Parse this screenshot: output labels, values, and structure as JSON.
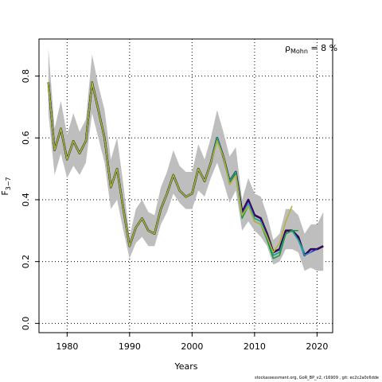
{
  "chart_data": {
    "type": "line",
    "title": "",
    "xlabel": "Years",
    "ylabel": "F",
    "ylabel_sub": "3−7",
    "annotation": {
      "rho": "ρ",
      "sub": "Mohn",
      "text": " = 8 %"
    },
    "xlim": [
      1975.5,
      2022.5
    ],
    "ylim": [
      -0.03,
      0.92
    ],
    "x_ticks": [
      1980,
      1990,
      2000,
      2010,
      2020
    ],
    "x_tick_labels": [
      "1980",
      "1990",
      "2000",
      "2010",
      "2020"
    ],
    "y_ticks": [
      0.0,
      0.2,
      0.4,
      0.6,
      0.8
    ],
    "y_tick_labels": [
      "0.0",
      "0.2",
      "0.4",
      "0.6",
      "0.8"
    ],
    "grid": "dotted",
    "ci_band": {
      "x": [
        1977,
        1978,
        1979,
        1980,
        1981,
        1982,
        1983,
        1984,
        1985,
        1986,
        1987,
        1988,
        1989,
        1990,
        1991,
        1992,
        1993,
        1994,
        1995,
        1996,
        1997,
        1998,
        1999,
        2000,
        2001,
        2002,
        2003,
        2004,
        2005,
        2006,
        2007,
        2008,
        2009,
        2010,
        2011,
        2012,
        2013,
        2014,
        2015,
        2016,
        2017,
        2018,
        2019,
        2020,
        2021
      ],
      "lower": [
        0.68,
        0.48,
        0.55,
        0.47,
        0.51,
        0.48,
        0.52,
        0.68,
        0.6,
        0.52,
        0.37,
        0.4,
        0.3,
        0.21,
        0.26,
        0.28,
        0.25,
        0.25,
        0.32,
        0.36,
        0.42,
        0.39,
        0.37,
        0.37,
        0.43,
        0.41,
        0.47,
        0.52,
        0.46,
        0.39,
        0.43,
        0.3,
        0.33,
        0.3,
        0.28,
        0.25,
        0.19,
        0.2,
        0.24,
        0.24,
        0.23,
        0.17,
        0.18,
        0.17,
        0.17
      ],
      "upper": [
        0.89,
        0.63,
        0.72,
        0.61,
        0.68,
        0.62,
        0.66,
        0.87,
        0.77,
        0.69,
        0.53,
        0.6,
        0.45,
        0.28,
        0.37,
        0.4,
        0.36,
        0.35,
        0.44,
        0.49,
        0.56,
        0.51,
        0.49,
        0.49,
        0.58,
        0.53,
        0.6,
        0.69,
        0.62,
        0.54,
        0.57,
        0.4,
        0.47,
        0.42,
        0.41,
        0.35,
        0.27,
        0.29,
        0.37,
        0.37,
        0.35,
        0.29,
        0.32,
        0.32,
        0.36
      ]
    },
    "series": [
      {
        "color": "#000000",
        "width": 2.5,
        "x": [
          1977,
          1978,
          1979,
          1980,
          1981,
          1982,
          1983,
          1984,
          1985,
          1986,
          1987,
          1988,
          1989,
          1990,
          1991,
          1992,
          1993,
          1994,
          1995,
          1996,
          1997,
          1998,
          1999,
          2000,
          2001,
          2002,
          2003,
          2004,
          2005,
          2006,
          2007,
          2008,
          2009,
          2010,
          2011,
          2012,
          2013,
          2014,
          2015,
          2016,
          2017,
          2018,
          2019,
          2020,
          2021
        ],
        "y": [
          0.78,
          0.56,
          0.63,
          0.53,
          0.59,
          0.55,
          0.59,
          0.78,
          0.69,
          0.6,
          0.44,
          0.5,
          0.37,
          0.25,
          0.31,
          0.34,
          0.3,
          0.29,
          0.37,
          0.42,
          0.48,
          0.43,
          0.41,
          0.42,
          0.5,
          0.46,
          0.52,
          0.6,
          0.54,
          0.46,
          0.49,
          0.36,
          0.4,
          0.35,
          0.34,
          0.29,
          0.23,
          0.24,
          0.3,
          0.3,
          0.28,
          0.22,
          0.24,
          0.24,
          0.25
        ]
      },
      {
        "color": "#4b0082",
        "width": 1.5,
        "x": [
          1977,
          1978,
          1979,
          1980,
          1981,
          1982,
          1983,
          1984,
          1985,
          1986,
          1987,
          1988,
          1989,
          1990,
          1991,
          1992,
          1993,
          1994,
          1995,
          1996,
          1997,
          1998,
          1999,
          2000,
          2001,
          2002,
          2003,
          2004,
          2005,
          2006,
          2007,
          2008,
          2009,
          2010,
          2011,
          2012,
          2013,
          2014,
          2015,
          2016,
          2017,
          2018,
          2019,
          2020,
          2021
        ],
        "y": [
          0.78,
          0.56,
          0.63,
          0.53,
          0.59,
          0.55,
          0.59,
          0.78,
          0.69,
          0.6,
          0.44,
          0.5,
          0.37,
          0.25,
          0.31,
          0.34,
          0.3,
          0.29,
          0.37,
          0.42,
          0.48,
          0.43,
          0.41,
          0.42,
          0.5,
          0.46,
          0.52,
          0.6,
          0.54,
          0.46,
          0.49,
          0.36,
          0.4,
          0.35,
          0.34,
          0.29,
          0.23,
          0.24,
          0.3,
          0.3,
          0.28,
          0.22,
          0.24,
          0.24,
          0.25
        ]
      },
      {
        "color": "#2233cc",
        "width": 1.5,
        "x": [
          1977,
          1978,
          1979,
          1980,
          1981,
          1982,
          1983,
          1984,
          1985,
          1986,
          1987,
          1988,
          1989,
          1990,
          1991,
          1992,
          1993,
          1994,
          1995,
          1996,
          1997,
          1998,
          1999,
          2000,
          2001,
          2002,
          2003,
          2004,
          2005,
          2006,
          2007,
          2008,
          2009,
          2010,
          2011,
          2012,
          2013,
          2014,
          2015,
          2016,
          2017,
          2018,
          2019,
          2020
        ],
        "y": [
          0.78,
          0.56,
          0.63,
          0.53,
          0.59,
          0.55,
          0.59,
          0.78,
          0.69,
          0.6,
          0.44,
          0.5,
          0.37,
          0.25,
          0.31,
          0.34,
          0.3,
          0.29,
          0.37,
          0.42,
          0.48,
          0.43,
          0.41,
          0.42,
          0.5,
          0.46,
          0.52,
          0.6,
          0.54,
          0.46,
          0.49,
          0.35,
          0.39,
          0.34,
          0.33,
          0.28,
          0.22,
          0.23,
          0.29,
          0.3,
          0.27,
          0.22,
          0.23,
          0.24
        ]
      },
      {
        "color": "#2f8fd8",
        "width": 1.5,
        "x": [
          1977,
          1978,
          1979,
          1980,
          1981,
          1982,
          1983,
          1984,
          1985,
          1986,
          1987,
          1988,
          1989,
          1990,
          1991,
          1992,
          1993,
          1994,
          1995,
          1996,
          1997,
          1998,
          1999,
          2000,
          2001,
          2002,
          2003,
          2004,
          2005,
          2006,
          2007,
          2008,
          2009,
          2010,
          2011,
          2012,
          2013,
          2014,
          2015,
          2016,
          2017,
          2018,
          2019
        ],
        "y": [
          0.78,
          0.56,
          0.63,
          0.53,
          0.59,
          0.55,
          0.59,
          0.78,
          0.69,
          0.6,
          0.44,
          0.5,
          0.37,
          0.25,
          0.31,
          0.34,
          0.3,
          0.29,
          0.37,
          0.42,
          0.48,
          0.43,
          0.41,
          0.42,
          0.5,
          0.46,
          0.52,
          0.6,
          0.54,
          0.46,
          0.49,
          0.35,
          0.39,
          0.34,
          0.33,
          0.28,
          0.22,
          0.23,
          0.29,
          0.3,
          0.27,
          0.22,
          0.23
        ]
      },
      {
        "color": "#1aa88a",
        "width": 1.5,
        "x": [
          1977,
          1978,
          1979,
          1980,
          1981,
          1982,
          1983,
          1984,
          1985,
          1986,
          1987,
          1988,
          1989,
          1990,
          1991,
          1992,
          1993,
          1994,
          1995,
          1996,
          1997,
          1998,
          1999,
          2000,
          2001,
          2002,
          2003,
          2004,
          2005,
          2006,
          2007,
          2008,
          2009,
          2010,
          2011,
          2012,
          2013,
          2014,
          2015,
          2016,
          2017,
          2018
        ],
        "y": [
          0.78,
          0.56,
          0.63,
          0.53,
          0.59,
          0.55,
          0.59,
          0.78,
          0.69,
          0.6,
          0.44,
          0.5,
          0.37,
          0.25,
          0.31,
          0.34,
          0.3,
          0.29,
          0.37,
          0.42,
          0.48,
          0.43,
          0.41,
          0.42,
          0.5,
          0.46,
          0.52,
          0.6,
          0.54,
          0.46,
          0.49,
          0.35,
          0.38,
          0.34,
          0.33,
          0.28,
          0.22,
          0.23,
          0.29,
          0.3,
          0.27,
          0.23
        ]
      },
      {
        "color": "#1a9a3a",
        "width": 1.5,
        "x": [
          1977,
          1978,
          1979,
          1980,
          1981,
          1982,
          1983,
          1984,
          1985,
          1986,
          1987,
          1988,
          1989,
          1990,
          1991,
          1992,
          1993,
          1994,
          1995,
          1996,
          1997,
          1998,
          1999,
          2000,
          2001,
          2002,
          2003,
          2004,
          2005,
          2006,
          2007,
          2008,
          2009,
          2010,
          2011,
          2012,
          2013,
          2014,
          2015,
          2016,
          2017
        ],
        "y": [
          0.78,
          0.56,
          0.63,
          0.53,
          0.59,
          0.55,
          0.59,
          0.78,
          0.69,
          0.6,
          0.44,
          0.5,
          0.37,
          0.25,
          0.31,
          0.34,
          0.3,
          0.29,
          0.37,
          0.42,
          0.48,
          0.43,
          0.41,
          0.42,
          0.5,
          0.46,
          0.52,
          0.59,
          0.54,
          0.45,
          0.48,
          0.34,
          0.38,
          0.33,
          0.32,
          0.27,
          0.21,
          0.22,
          0.29,
          0.3,
          0.3
        ]
      },
      {
        "color": "#b8b030",
        "width": 1.5,
        "x": [
          1977,
          1978,
          1979,
          1980,
          1981,
          1982,
          1983,
          1984,
          1985,
          1986,
          1987,
          1988,
          1989,
          1990,
          1991,
          1992,
          1993,
          1994,
          1995,
          1996,
          1997,
          1998,
          1999,
          2000,
          2001,
          2002,
          2003,
          2004,
          2005,
          2006,
          2007,
          2008,
          2009,
          2010,
          2011,
          2012,
          2013,
          2014,
          2015,
          2016
        ],
        "y": [
          0.78,
          0.56,
          0.63,
          0.53,
          0.59,
          0.55,
          0.59,
          0.78,
          0.69,
          0.6,
          0.44,
          0.5,
          0.37,
          0.25,
          0.31,
          0.34,
          0.3,
          0.29,
          0.37,
          0.42,
          0.48,
          0.43,
          0.41,
          0.42,
          0.5,
          0.46,
          0.52,
          0.59,
          0.54,
          0.45,
          0.48,
          0.35,
          0.38,
          0.33,
          0.32,
          0.28,
          0.23,
          0.26,
          0.33,
          0.38
        ]
      }
    ]
  },
  "footer": "stockassessment.org, GoR_BP_v2, r16909 , git: ec2c2a0c6dde"
}
